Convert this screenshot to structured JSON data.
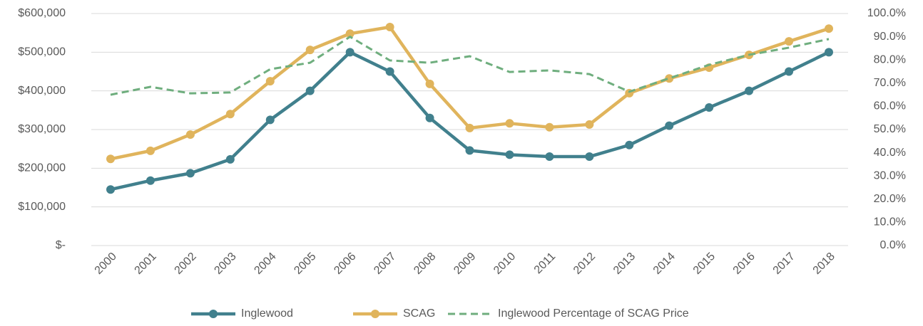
{
  "chart_data": {
    "type": "line",
    "categories": [
      "2000",
      "2001",
      "2002",
      "2003",
      "2004",
      "2005",
      "2006",
      "2007",
      "2008",
      "2009",
      "2010",
      "2011",
      "2012",
      "2013",
      "2014",
      "2015",
      "2016",
      "2017",
      "2018"
    ],
    "series": [
      {
        "name": "Inglewood",
        "color": "#41808d",
        "values": [
          145000,
          168000,
          187000,
          223000,
          325000,
          400000,
          500000,
          450000,
          330000,
          246000,
          235000,
          230000,
          230000,
          260000,
          310000,
          357000,
          400000,
          450000,
          500000
        ]
      },
      {
        "name": "SCAG",
        "color": "#e0b45c",
        "values": [
          224000,
          245000,
          287000,
          340000,
          425000,
          506000,
          548000,
          565000,
          418000,
          304000,
          316000,
          306000,
          313000,
          394000,
          432000,
          460000,
          493000,
          528000,
          561000
        ]
      },
      {
        "name": "Inglewood Percentage of SCAG Price",
        "color": "#6fae7e",
        "axis": "y2",
        "dashed": true,
        "values": [
          65,
          68.4,
          65.6,
          66,
          76,
          78.8,
          90,
          79.8,
          78.8,
          81.6,
          74.8,
          75.5,
          73.9,
          66.3,
          72.1,
          77.9,
          82.2,
          85.3,
          89
        ]
      }
    ],
    "ylim": [
      0,
      600000
    ],
    "yticks": [
      {
        "value": 0,
        "label": "$-"
      },
      {
        "value": 100000,
        "label": "$100,000"
      },
      {
        "value": 200000,
        "label": "$200,000"
      },
      {
        "value": 300000,
        "label": "$300,000"
      },
      {
        "value": 400000,
        "label": "$400,000"
      },
      {
        "value": 500000,
        "label": "$500,000"
      },
      {
        "value": 600000,
        "label": "$600,000"
      }
    ],
    "y2lim": [
      0,
      100
    ],
    "y2ticks": [
      {
        "value": 0,
        "label": "0.0%"
      },
      {
        "value": 10,
        "label": "10.0%"
      },
      {
        "value": 20,
        "label": "20.0%"
      },
      {
        "value": 30,
        "label": "30.0%"
      },
      {
        "value": 40,
        "label": "40.0%"
      },
      {
        "value": 50,
        "label": "50.0%"
      },
      {
        "value": 60,
        "label": "60.0%"
      },
      {
        "value": 70,
        "label": "70.0%"
      },
      {
        "value": 80,
        "label": "80.0%"
      },
      {
        "value": 90,
        "label": "90.0%"
      },
      {
        "value": 100,
        "label": "100.0%"
      }
    ],
    "grid": true,
    "legend": "bottom"
  }
}
